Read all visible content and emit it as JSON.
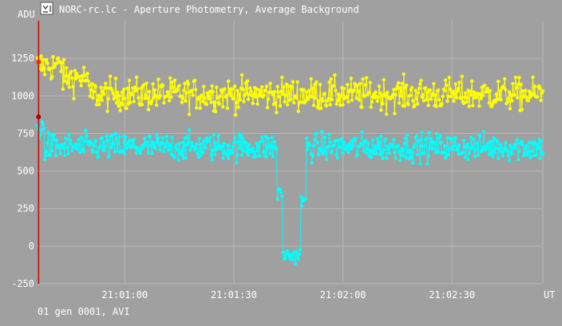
{
  "window": {
    "title": "NORC-rc.lc - Aperture Photometry, Average Background",
    "icon": "lightcurve-app-icon"
  },
  "footer": {
    "status": "01 gen 0001, AVI"
  },
  "colors": {
    "background": "#a0a0a0",
    "grid": "#b8b8b8",
    "text": "#ffffff",
    "series1": "#ffff00",
    "series2": "#00ffff",
    "cursor": "#cc0000"
  },
  "chart_data": {
    "type": "line",
    "ylabel": "ADU",
    "xlabel": "UT",
    "ylim": [
      -250,
      1500
    ],
    "yticks": [
      -250,
      0,
      250,
      500,
      750,
      1000,
      1250
    ],
    "xticks": [
      "21:01:00",
      "21:01:30",
      "21:02:00",
      "21:02:30"
    ],
    "xlim_seconds_after_2100": [
      36,
      175
    ],
    "xtick_seconds_after_2100": [
      60,
      90,
      120,
      150
    ],
    "grid": true,
    "markers": "filled-circles",
    "cursor_x_seconds_after_2100": 36.3,
    "cursor_values": [
      1225,
      860
    ],
    "series": [
      {
        "color": "#ffff00",
        "level": 1010,
        "noise": 70,
        "segments": [
          {
            "from": 36,
            "to": 43,
            "value": 1200
          },
          {
            "from": 43,
            "to": 50,
            "value": 1120
          },
          {
            "from": 50,
            "to": 175,
            "value": 1010
          }
        ]
      },
      {
        "color": "#00ffff",
        "level": 660,
        "noise": 60,
        "segments": [
          {
            "from": 36,
            "to": 38,
            "value": 780
          },
          {
            "from": 38,
            "to": 102,
            "value": 660
          },
          {
            "from": 102,
            "to": 103.5,
            "value": 350
          },
          {
            "from": 103.5,
            "to": 108.5,
            "value": -60
          },
          {
            "from": 108.5,
            "to": 110,
            "value": 300
          },
          {
            "from": 110,
            "to": 175,
            "value": 660
          }
        ]
      }
    ]
  }
}
